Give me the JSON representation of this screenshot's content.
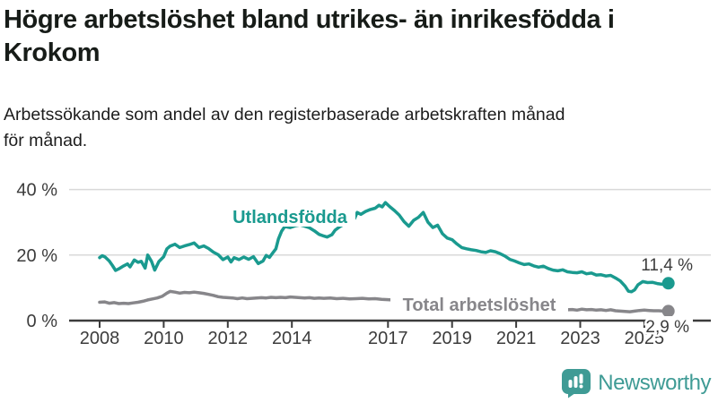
{
  "header": {
    "title_lines": [
      "Högre arbetslöshet bland utrikes- än inrikesfödda i",
      "Krokom"
    ],
    "subtitle_lines": [
      "Arbetssökande som andel av den registerbaserade arbetskraften månad",
      "för månad."
    ]
  },
  "chart_data": {
    "type": "line",
    "unit": "%",
    "ylim": [
      0,
      40
    ],
    "xlim": [
      2008,
      2025.75
    ],
    "grid": "horizontal-only",
    "y_ticks": [
      {
        "value": 0,
        "label": "0 %"
      },
      {
        "value": 20,
        "label": "20 %"
      },
      {
        "value": 40,
        "label": "40 %"
      }
    ],
    "x_ticks": [
      {
        "year": 2008,
        "label": "2008"
      },
      {
        "year": 2010,
        "label": "2010"
      },
      {
        "year": 2012,
        "label": "2012"
      },
      {
        "year": 2014,
        "label": "2014"
      },
      {
        "year": 2017,
        "label": "2017"
      },
      {
        "year": 2019,
        "label": "2019"
      },
      {
        "year": 2021,
        "label": "2021"
      },
      {
        "year": 2023,
        "label": "2023"
      },
      {
        "year": 2025,
        "label": "2025"
      }
    ],
    "series": [
      {
        "name": "Utlandsfödda",
        "color": "#1a9a8f",
        "end_label": "11,4 %",
        "end_value": 11.4,
        "points": [
          [
            2008.0,
            19.2
          ],
          [
            2008.08,
            19.8
          ],
          [
            2008.17,
            19.4
          ],
          [
            2008.3,
            18.2
          ],
          [
            2008.4,
            16.8
          ],
          [
            2008.5,
            15.3
          ],
          [
            2008.62,
            15.9
          ],
          [
            2008.75,
            16.7
          ],
          [
            2008.87,
            17.3
          ],
          [
            2008.95,
            16.4
          ],
          [
            2009.08,
            18.5
          ],
          [
            2009.2,
            17.8
          ],
          [
            2009.3,
            18.1
          ],
          [
            2009.42,
            16.0
          ],
          [
            2009.5,
            20.0
          ],
          [
            2009.62,
            18.1
          ],
          [
            2009.72,
            15.4
          ],
          [
            2009.85,
            18.0
          ],
          [
            2010.0,
            19.5
          ],
          [
            2010.1,
            21.9
          ],
          [
            2010.2,
            22.7
          ],
          [
            2010.35,
            23.3
          ],
          [
            2010.5,
            22.3
          ],
          [
            2010.65,
            22.8
          ],
          [
            2010.8,
            23.2
          ],
          [
            2010.95,
            23.7
          ],
          [
            2011.1,
            22.3
          ],
          [
            2011.25,
            22.8
          ],
          [
            2011.4,
            22.0
          ],
          [
            2011.55,
            20.9
          ],
          [
            2011.7,
            20.1
          ],
          [
            2011.85,
            18.6
          ],
          [
            2012.0,
            19.4
          ],
          [
            2012.1,
            17.9
          ],
          [
            2012.2,
            19.2
          ],
          [
            2012.35,
            18.6
          ],
          [
            2012.5,
            19.4
          ],
          [
            2012.65,
            18.7
          ],
          [
            2012.8,
            19.5
          ],
          [
            2012.95,
            17.4
          ],
          [
            2013.1,
            18.2
          ],
          [
            2013.2,
            19.9
          ],
          [
            2013.3,
            19.3
          ],
          [
            2013.4,
            20.6
          ],
          [
            2013.5,
            21.9
          ],
          [
            2013.58,
            24.9
          ],
          [
            2013.68,
            27.3
          ],
          [
            2013.78,
            28.7
          ],
          [
            2013.95,
            28.4
          ],
          [
            2014.1,
            28.9
          ],
          [
            2014.25,
            29.2
          ],
          [
            2014.4,
            28.8
          ],
          [
            2014.55,
            28.3
          ],
          [
            2014.7,
            27.4
          ],
          [
            2014.85,
            26.3
          ],
          [
            2015.0,
            25.8
          ],
          [
            2015.1,
            25.5
          ],
          [
            2015.25,
            26.2
          ],
          [
            2015.35,
            27.6
          ],
          [
            2015.5,
            28.7
          ],
          [
            2015.62,
            29.4
          ],
          [
            2015.72,
            31.5
          ],
          [
            2015.8,
            33.8
          ],
          [
            2015.88,
            31.8
          ],
          [
            2015.96,
            31.2
          ],
          [
            2016.04,
            33.0
          ],
          [
            2016.15,
            32.4
          ],
          [
            2016.3,
            33.3
          ],
          [
            2016.45,
            33.9
          ],
          [
            2016.6,
            34.3
          ],
          [
            2016.72,
            35.2
          ],
          [
            2016.82,
            34.7
          ],
          [
            2016.92,
            36.0
          ],
          [
            2017.05,
            34.8
          ],
          [
            2017.2,
            33.6
          ],
          [
            2017.35,
            32.2
          ],
          [
            2017.5,
            30.2
          ],
          [
            2017.65,
            28.8
          ],
          [
            2017.8,
            30.6
          ],
          [
            2017.95,
            31.5
          ],
          [
            2018.1,
            33.0
          ],
          [
            2018.25,
            30.0
          ],
          [
            2018.4,
            28.4
          ],
          [
            2018.55,
            29.1
          ],
          [
            2018.7,
            26.5
          ],
          [
            2018.85,
            25.2
          ],
          [
            2019.0,
            24.7
          ],
          [
            2019.15,
            23.4
          ],
          [
            2019.3,
            22.3
          ],
          [
            2019.45,
            21.9
          ],
          [
            2019.6,
            21.6
          ],
          [
            2019.75,
            21.4
          ],
          [
            2019.9,
            21.0
          ],
          [
            2020.05,
            20.8
          ],
          [
            2020.2,
            21.3
          ],
          [
            2020.35,
            21.0
          ],
          [
            2020.5,
            20.4
          ],
          [
            2020.65,
            19.7
          ],
          [
            2020.8,
            18.7
          ],
          [
            2020.95,
            18.2
          ],
          [
            2021.1,
            17.6
          ],
          [
            2021.25,
            17.1
          ],
          [
            2021.4,
            17.3
          ],
          [
            2021.55,
            16.7
          ],
          [
            2021.7,
            16.3
          ],
          [
            2021.85,
            16.6
          ],
          [
            2022.0,
            15.9
          ],
          [
            2022.15,
            15.4
          ],
          [
            2022.3,
            15.2
          ],
          [
            2022.45,
            15.5
          ],
          [
            2022.6,
            14.9
          ],
          [
            2022.75,
            14.7
          ],
          [
            2022.9,
            14.6
          ],
          [
            2023.05,
            14.9
          ],
          [
            2023.2,
            14.3
          ],
          [
            2023.35,
            14.5
          ],
          [
            2023.5,
            13.9
          ],
          [
            2023.65,
            14.0
          ],
          [
            2023.8,
            13.6
          ],
          [
            2023.95,
            13.8
          ],
          [
            2024.1,
            13.0
          ],
          [
            2024.25,
            12.1
          ],
          [
            2024.4,
            10.5
          ],
          [
            2024.5,
            9.0
          ],
          [
            2024.6,
            8.8
          ],
          [
            2024.7,
            9.4
          ],
          [
            2024.8,
            10.9
          ],
          [
            2024.95,
            11.9
          ],
          [
            2025.1,
            11.6
          ],
          [
            2025.25,
            11.7
          ],
          [
            2025.4,
            11.3
          ],
          [
            2025.55,
            11.1
          ],
          [
            2025.75,
            11.4
          ]
        ]
      },
      {
        "name": "Total arbetslöshet",
        "color": "#87868a",
        "end_label": "2,9 %",
        "end_value": 2.9,
        "points": [
          [
            2008.0,
            5.6
          ],
          [
            2008.15,
            5.7
          ],
          [
            2008.3,
            5.3
          ],
          [
            2008.45,
            5.5
          ],
          [
            2008.6,
            5.2
          ],
          [
            2008.75,
            5.3
          ],
          [
            2008.9,
            5.2
          ],
          [
            2009.05,
            5.4
          ],
          [
            2009.2,
            5.6
          ],
          [
            2009.35,
            5.9
          ],
          [
            2009.5,
            6.3
          ],
          [
            2009.65,
            6.6
          ],
          [
            2009.8,
            6.9
          ],
          [
            2009.95,
            7.4
          ],
          [
            2010.1,
            8.4
          ],
          [
            2010.2,
            8.9
          ],
          [
            2010.35,
            8.7
          ],
          [
            2010.5,
            8.4
          ],
          [
            2010.65,
            8.6
          ],
          [
            2010.8,
            8.5
          ],
          [
            2010.95,
            8.7
          ],
          [
            2011.1,
            8.5
          ],
          [
            2011.25,
            8.3
          ],
          [
            2011.4,
            8.0
          ],
          [
            2011.55,
            7.7
          ],
          [
            2011.7,
            7.3
          ],
          [
            2011.85,
            7.1
          ],
          [
            2012.0,
            7.0
          ],
          [
            2012.15,
            6.9
          ],
          [
            2012.3,
            6.7
          ],
          [
            2012.45,
            6.9
          ],
          [
            2012.6,
            6.7
          ],
          [
            2012.75,
            6.8
          ],
          [
            2012.9,
            6.9
          ],
          [
            2013.05,
            7.0
          ],
          [
            2013.2,
            6.9
          ],
          [
            2013.35,
            7.1
          ],
          [
            2013.5,
            7.0
          ],
          [
            2013.65,
            7.1
          ],
          [
            2013.8,
            7.0
          ],
          [
            2013.95,
            7.2
          ],
          [
            2014.1,
            7.1
          ],
          [
            2014.25,
            7.0
          ],
          [
            2014.4,
            6.9
          ],
          [
            2014.55,
            7.0
          ],
          [
            2014.7,
            6.8
          ],
          [
            2014.85,
            6.9
          ],
          [
            2015.0,
            6.8
          ],
          [
            2015.2,
            6.9
          ],
          [
            2015.4,
            6.7
          ],
          [
            2015.6,
            6.8
          ],
          [
            2015.8,
            6.6
          ],
          [
            2016.0,
            6.7
          ],
          [
            2016.2,
            6.8
          ],
          [
            2016.4,
            6.6
          ],
          [
            2016.6,
            6.7
          ],
          [
            2016.8,
            6.5
          ],
          [
            2017.0,
            6.4
          ],
          [
            2017.3,
            6.2
          ],
          [
            2017.6,
            6.0
          ],
          [
            2017.9,
            5.8
          ],
          [
            2018.2,
            5.6
          ],
          [
            2018.5,
            5.4
          ],
          [
            2018.8,
            5.2
          ],
          [
            2019.1,
            5.0
          ],
          [
            2019.4,
            4.9
          ],
          [
            2019.7,
            4.8
          ],
          [
            2020.0,
            5.2
          ],
          [
            2020.3,
            5.5
          ],
          [
            2020.6,
            5.3
          ],
          [
            2020.9,
            5.0
          ],
          [
            2021.2,
            4.7
          ],
          [
            2021.5,
            4.4
          ],
          [
            2021.8,
            4.1
          ],
          [
            2022.1,
            3.8
          ],
          [
            2022.4,
            3.5
          ],
          [
            2022.6,
            3.3
          ],
          [
            2022.75,
            3.4
          ],
          [
            2022.9,
            3.2
          ],
          [
            2023.05,
            3.5
          ],
          [
            2023.2,
            3.3
          ],
          [
            2023.35,
            3.4
          ],
          [
            2023.5,
            3.2
          ],
          [
            2023.65,
            3.3
          ],
          [
            2023.8,
            3.1
          ],
          [
            2023.95,
            3.3
          ],
          [
            2024.1,
            3.0
          ],
          [
            2024.25,
            2.9
          ],
          [
            2024.4,
            2.8
          ],
          [
            2024.55,
            2.7
          ],
          [
            2024.7,
            2.9
          ],
          [
            2024.85,
            3.1
          ],
          [
            2025.0,
            3.2
          ],
          [
            2025.15,
            3.1
          ],
          [
            2025.3,
            3.0
          ],
          [
            2025.45,
            3.0
          ],
          [
            2025.6,
            2.9
          ],
          [
            2025.75,
            2.9
          ]
        ]
      }
    ]
  },
  "footer": {
    "brand": "Newsworthy",
    "brand_color": "#3f9b95",
    "logo_icon": "bar-chart-speech-bubble"
  }
}
